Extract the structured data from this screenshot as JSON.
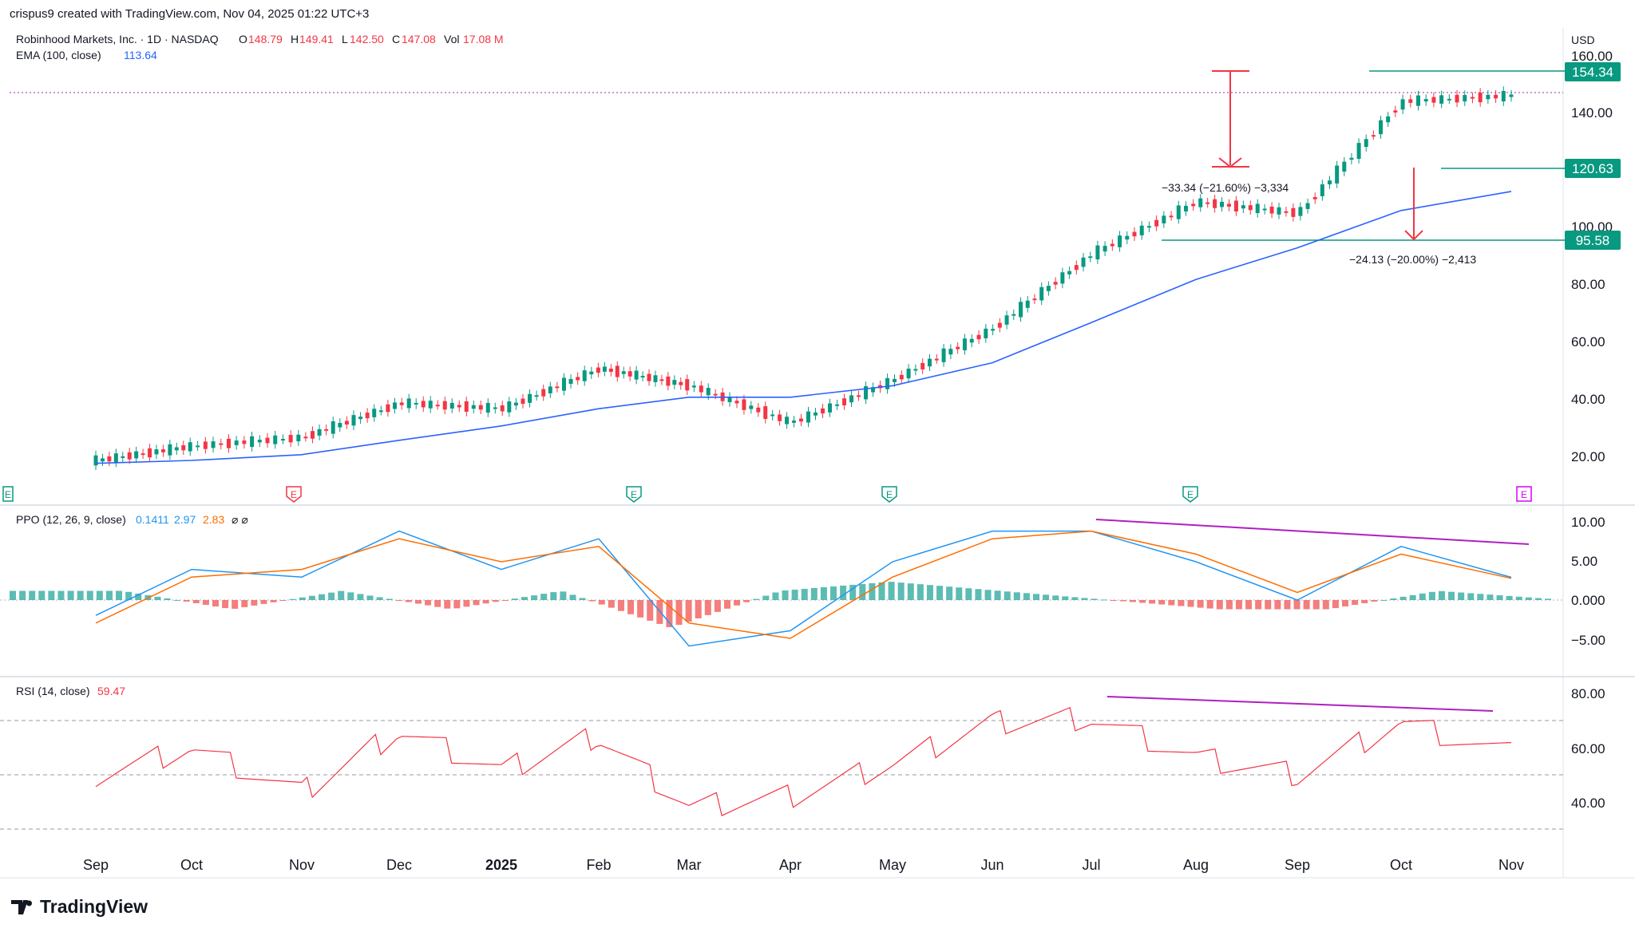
{
  "header": {
    "credit": "crispus9 created with TradingView.com, Nov 04, 2025 01:22 UTC+3",
    "symbol": "Robinhood Markets, Inc. · 1D · NASDAQ",
    "o_label": "O",
    "o": "148.79",
    "h_label": "H",
    "h": "149.41",
    "l_label": "L",
    "l": "142.50",
    "c_label": "C",
    "c": "147.08",
    "vol_label": "Vol",
    "vol": "17.08 M",
    "ema_label": "EMA (100, close)",
    "ema_value": "113.64"
  },
  "price_axis": {
    "currency": "USD",
    "ticks": [
      "160.00",
      "140.00",
      "100.00",
      "80.00",
      "60.00",
      "40.00",
      "20.00"
    ],
    "tags": [
      "154.34",
      "120.63",
      "95.58"
    ]
  },
  "annotations": {
    "measure1": "−33.34 (−21.60%) −3,334",
    "measure2": "−24.13 (−20.00%) −2,413"
  },
  "earnings_marker": "E",
  "ppo": {
    "label": "PPO (12, 26, 9, close)",
    "v1": "0.1411",
    "v2": "2.97",
    "v3": "2.83",
    "icons": "⌀ ⌀",
    "ticks": [
      "10.00",
      "5.00",
      "0.000",
      "−5.00"
    ]
  },
  "rsi": {
    "label": "RSI (14, close)",
    "value": "59.47",
    "ticks": [
      "80.00",
      "60.00",
      "40.00"
    ]
  },
  "time_axis": [
    "Sep",
    "Oct",
    "Nov",
    "Dec",
    "2025",
    "Feb",
    "Mar",
    "Apr",
    "May",
    "Jun",
    "Jul",
    "Aug",
    "Sep",
    "Oct",
    "Nov"
  ],
  "logo": "TradingView",
  "colors": {
    "up": "#089981",
    "down": "#f23645",
    "ema": "#2962ff",
    "ppo_fast": "#2196f3",
    "ppo_signal": "#ff6d00",
    "rsi": "#f23645",
    "divergence": "#b01fc1",
    "level": "#089981",
    "arrow": "#f23645"
  },
  "chart_data": [
    {
      "type": "line",
      "title": "Robinhood Markets, Inc. · 1D · NASDAQ",
      "x": [
        "Sep",
        "Oct",
        "Nov",
        "Dec",
        "2025",
        "Feb",
        "Mar",
        "Apr",
        "May",
        "Jun",
        "Jul",
        "Aug",
        "Sep",
        "Oct",
        "Nov"
      ],
      "series": [
        {
          "name": "Robinhood Markets, Inc.",
          "values": [
            20,
            25,
            28,
            40,
            38,
            52,
            46,
            33,
            48,
            66,
            92,
            110,
            106,
            145,
            147
          ]
        },
        {
          "name": "EMA (100, close)",
          "values": [
            19,
            20,
            22,
            27,
            32,
            38,
            42,
            42,
            46,
            54,
            68,
            83,
            94,
            107,
            113.64
          ]
        }
      ],
      "ylim": [
        10,
        160
      ],
      "levels": [
        154.34,
        120.63,
        95.58
      ]
    },
    {
      "type": "line",
      "title": "PPO (12, 26, 9, close)",
      "x": [
        "Sep",
        "Oct",
        "Nov",
        "Dec",
        "2025",
        "Feb",
        "Mar",
        "Apr",
        "May",
        "Jun",
        "Jul",
        "Aug",
        "Sep",
        "Oct",
        "Nov"
      ],
      "series": [
        {
          "name": "PPO",
          "values": [
            -2,
            4,
            3,
            9,
            4,
            8,
            -6,
            -4,
            5,
            9,
            9,
            5,
            0,
            7,
            2.97
          ]
        },
        {
          "name": "Signal",
          "values": [
            -3,
            3,
            4,
            8,
            5,
            7,
            -3,
            -5,
            3,
            8,
            9,
            6,
            1,
            6,
            2.83
          ]
        }
      ],
      "ylim": [
        -7,
        11
      ]
    },
    {
      "type": "line",
      "title": "RSI (14, close)",
      "x": [
        "Sep",
        "Oct",
        "Nov",
        "Dec",
        "2025",
        "Feb",
        "Mar",
        "Apr",
        "May",
        "Jun",
        "Jul",
        "Aug",
        "Sep",
        "Oct",
        "Nov"
      ],
      "series": [
        {
          "name": "RSI",
          "values": [
            50,
            62,
            42,
            70,
            52,
            68,
            35,
            40,
            55,
            74,
            76,
            58,
            50,
            74,
            59.47
          ]
        }
      ],
      "ylim": [
        28,
        82
      ]
    }
  ]
}
